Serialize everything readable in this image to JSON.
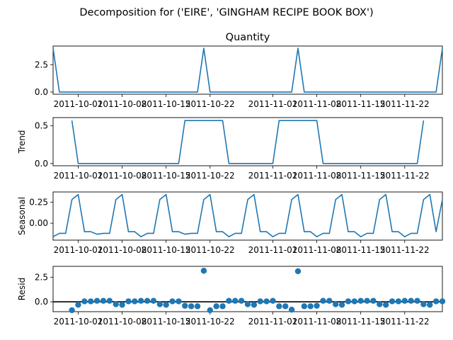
{
  "figure_title": "Decomposition for ('EIRE', 'GINGHAM RECIPE BOOK BOX')",
  "line_color": "#1f77b4",
  "dates": [
    "2011-09-27",
    "2011-09-28",
    "2011-09-29",
    "2011-09-30",
    "2011-10-01",
    "2011-10-02",
    "2011-10-03",
    "2011-10-04",
    "2011-10-05",
    "2011-10-06",
    "2011-10-07",
    "2011-10-08",
    "2011-10-09",
    "2011-10-10",
    "2011-10-11",
    "2011-10-12",
    "2011-10-13",
    "2011-10-14",
    "2011-10-15",
    "2011-10-16",
    "2011-10-17",
    "2011-10-18",
    "2011-10-19",
    "2011-10-20",
    "2011-10-21",
    "2011-10-22",
    "2011-10-23",
    "2011-10-24",
    "2011-10-25",
    "2011-10-26",
    "2011-10-27",
    "2011-10-28",
    "2011-10-29",
    "2011-10-30",
    "2011-10-31",
    "2011-11-01",
    "2011-11-02",
    "2011-11-03",
    "2011-11-04",
    "2011-11-05",
    "2011-11-06",
    "2011-11-07",
    "2011-11-08",
    "2011-11-09",
    "2011-11-10",
    "2011-11-11",
    "2011-11-12",
    "2011-11-13",
    "2011-11-14",
    "2011-11-15",
    "2011-11-16",
    "2011-11-17",
    "2011-11-18",
    "2011-11-19",
    "2011-11-20",
    "2011-11-21",
    "2011-11-22",
    "2011-11-23",
    "2011-11-24",
    "2011-11-25",
    "2011-11-26",
    "2011-11-27",
    "2011-11-28"
  ],
  "x_tick_labels": [
    "2011-10-01",
    "2011-10-08",
    "2011-10-15",
    "2011-10-22",
    "2011-11-01",
    "2011-11-08",
    "2011-11-15",
    "2011-11-22"
  ],
  "chart_data": [
    {
      "type": "line",
      "title": "Quantity",
      "ylabel": "",
      "ylim": [
        -0.2,
        4.2
      ],
      "yticks": [
        0.0,
        2.5
      ],
      "y_tick_labels": [
        "0.0",
        "2.5"
      ],
      "series": [
        {
          "values": [
            4,
            0,
            0,
            0,
            0,
            0,
            0,
            0,
            0,
            0,
            0,
            0,
            0,
            0,
            0,
            0,
            0,
            0,
            0,
            0,
            0,
            0,
            0,
            0,
            4,
            0,
            0,
            0,
            0,
            0,
            0,
            0,
            0,
            0,
            0,
            0,
            0,
            0,
            0,
            4,
            0,
            0,
            0,
            0,
            0,
            0,
            0,
            0,
            0,
            0,
            0,
            0,
            0,
            0,
            0,
            0,
            0,
            0,
            0,
            0,
            0,
            0,
            4
          ]
        }
      ]
    },
    {
      "type": "line",
      "title": "",
      "ylabel": "Trend",
      "ylim": [
        -0.03,
        0.61
      ],
      "yticks": [
        0.0,
        0.5
      ],
      "y_tick_labels": [
        "0.0",
        "0.5"
      ],
      "series": [
        {
          "values": [
            null,
            null,
            null,
            0.571,
            0,
            0,
            0,
            0,
            0,
            0,
            0,
            0,
            0,
            0,
            0,
            0,
            0,
            0,
            0,
            0,
            0,
            0.571,
            0.571,
            0.571,
            0.571,
            0.571,
            0.571,
            0.571,
            0,
            0,
            0,
            0,
            0,
            0,
            0,
            0,
            0.571,
            0.571,
            0.571,
            0.571,
            0.571,
            0.571,
            0.571,
            0,
            0,
            0,
            0,
            0,
            0,
            0,
            0,
            0,
            0,
            0,
            0,
            0,
            0,
            0,
            0,
            0.571,
            null,
            null,
            null
          ]
        }
      ]
    },
    {
      "type": "line",
      "title": "",
      "ylabel": "Seasonal",
      "ylim": [
        -0.2,
        0.37
      ],
      "yticks": [
        0.0,
        0.25
      ],
      "y_tick_labels": [
        "0.00",
        "0.25"
      ],
      "series": [
        {
          "values": [
            -0.16,
            -0.12,
            -0.12,
            0.28,
            0.34,
            -0.1,
            -0.1,
            -0.13,
            -0.12,
            -0.12,
            0.28,
            0.34,
            -0.1,
            -0.1,
            -0.16,
            -0.12,
            -0.12,
            0.28,
            0.34,
            -0.1,
            -0.1,
            -0.13,
            -0.12,
            -0.12,
            0.28,
            0.34,
            -0.1,
            -0.1,
            -0.16,
            -0.12,
            -0.12,
            0.28,
            0.34,
            -0.1,
            -0.1,
            -0.16,
            -0.12,
            -0.12,
            0.28,
            0.34,
            -0.1,
            -0.1,
            -0.16,
            -0.12,
            -0.12,
            0.28,
            0.34,
            -0.1,
            -0.1,
            -0.16,
            -0.12,
            -0.12,
            0.28,
            0.34,
            -0.1,
            -0.1,
            -0.16,
            -0.12,
            -0.12,
            0.28,
            0.34,
            -0.1,
            0.28
          ]
        }
      ]
    },
    {
      "type": "scatter",
      "title": "",
      "ylabel": "Resid",
      "ylim": [
        -1.0,
        3.6
      ],
      "yticks": [
        0.0,
        2.5
      ],
      "y_tick_labels": [
        "0.0",
        "2.5"
      ],
      "zero_line": true,
      "series": [
        {
          "values": [
            null,
            null,
            null,
            -0.85,
            -0.3,
            0.05,
            0.05,
            0.1,
            0.1,
            0.1,
            -0.25,
            -0.3,
            0.05,
            0.05,
            0.1,
            0.1,
            0.1,
            -0.25,
            -0.3,
            0.05,
            0.05,
            -0.4,
            -0.45,
            -0.45,
            3.15,
            -0.85,
            -0.45,
            -0.45,
            0.1,
            0.1,
            0.1,
            -0.25,
            -0.3,
            0.05,
            0.05,
            0.1,
            -0.45,
            -0.45,
            -0.8,
            3.1,
            -0.45,
            -0.45,
            -0.4,
            0.1,
            0.1,
            -0.25,
            -0.3,
            0.05,
            0.05,
            0.1,
            0.1,
            0.1,
            -0.25,
            -0.3,
            0.05,
            0.05,
            0.1,
            0.1,
            0.1,
            -0.25,
            -0.3,
            0.05,
            0.05
          ]
        }
      ]
    }
  ]
}
